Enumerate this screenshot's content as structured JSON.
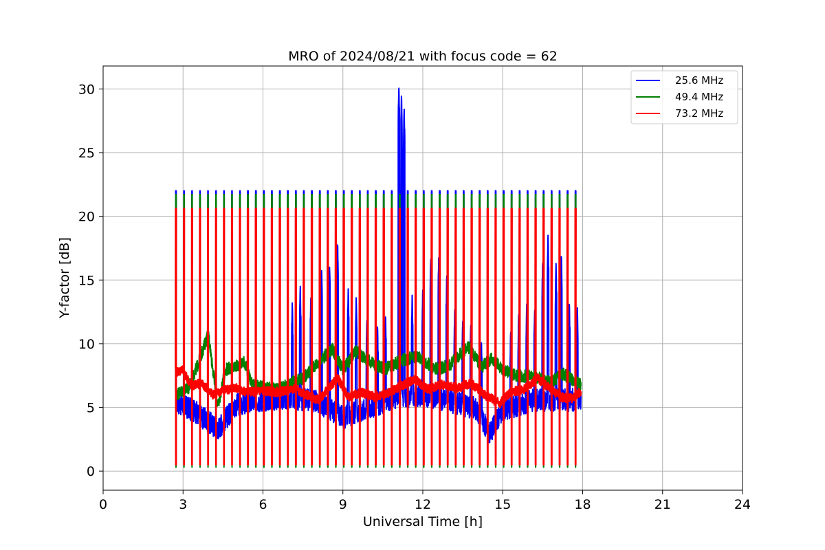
{
  "chart_data": {
    "type": "line",
    "title": "MRO of 2024/08/21 with focus code = 62",
    "xlabel": "Universal Time [h]",
    "ylabel": "Y-factor [dB]",
    "xlim": [
      0,
      24
    ],
    "ylim": [
      -1.5,
      31.8
    ],
    "xticks": [
      0,
      3,
      6,
      9,
      12,
      15,
      18,
      21,
      24
    ],
    "xtick_labels": [
      "0",
      "3",
      "6",
      "9",
      "12",
      "15",
      "18",
      "21",
      "24"
    ],
    "yticks": [
      0,
      5,
      10,
      15,
      20,
      25,
      30
    ],
    "ytick_labels": [
      "0",
      "5",
      "10",
      "15",
      "20",
      "25",
      "30"
    ],
    "grid": true,
    "legend_position": "top-right",
    "cycle": {
      "start": 2.72,
      "end": 17.8,
      "period": 0.3,
      "note_values": "each cycle: baseline level, then a calibration spike to peak and a dip to min"
    },
    "series": [
      {
        "name": "25.6 MHz",
        "color": "#0000ff",
        "peak": 22.0,
        "min": 1.5,
        "baseline": [
          [
            2.7,
            5.5
          ],
          [
            3.5,
            4.6
          ],
          [
            4.3,
            3.3
          ],
          [
            5.0,
            5.2
          ],
          [
            6.0,
            5.6
          ],
          [
            7.0,
            5.7
          ],
          [
            8.0,
            5.5
          ],
          [
            9.0,
            4.2
          ],
          [
            10.0,
            5.0
          ],
          [
            11.0,
            5.8
          ],
          [
            12.0,
            6.0
          ],
          [
            13.0,
            5.5
          ],
          [
            14.0,
            4.9
          ],
          [
            14.5,
            3.0
          ],
          [
            15.0,
            4.8
          ],
          [
            16.0,
            5.5
          ],
          [
            17.0,
            5.6
          ],
          [
            17.9,
            5.6
          ]
        ],
        "bursts": [
          [
            7.1,
            13.2
          ],
          [
            7.4,
            14.5
          ],
          [
            7.8,
            13.9
          ],
          [
            8.2,
            16.0
          ],
          [
            8.5,
            16.3
          ],
          [
            8.8,
            18.0
          ],
          [
            9.2,
            14.3
          ],
          [
            9.5,
            13.6
          ],
          [
            9.9,
            12.0
          ],
          [
            10.3,
            11.5
          ],
          [
            10.6,
            12.4
          ],
          [
            11.1,
            30.3
          ],
          [
            11.2,
            29.6
          ],
          [
            11.3,
            28.4
          ],
          [
            11.6,
            13.8
          ],
          [
            12.0,
            14.5
          ],
          [
            12.3,
            16.8
          ],
          [
            12.6,
            17.0
          ],
          [
            12.9,
            15.5
          ],
          [
            13.2,
            13.0
          ],
          [
            13.5,
            12.0
          ],
          [
            13.8,
            11.6
          ],
          [
            14.2,
            10.3
          ],
          [
            15.3,
            11.1
          ],
          [
            15.6,
            12.6
          ],
          [
            15.9,
            13.3
          ],
          [
            16.2,
            12.8
          ],
          [
            16.5,
            16.6
          ],
          [
            16.7,
            18.5
          ],
          [
            17.0,
            16.3
          ],
          [
            17.2,
            17.1
          ],
          [
            17.5,
            13.3
          ],
          [
            17.8,
            13.0
          ]
        ],
        "spike_at": 11.15,
        "spike_min": 1.5
      },
      {
        "name": "49.4 MHz",
        "color": "#008000",
        "peak": 21.7,
        "min": 0.3,
        "baseline": [
          [
            2.7,
            6.0
          ],
          [
            3.2,
            6.5
          ],
          [
            3.6,
            8.6
          ],
          [
            3.95,
            10.8
          ],
          [
            4.3,
            5.0
          ],
          [
            4.6,
            8.0
          ],
          [
            5.0,
            8.2
          ],
          [
            5.3,
            8.6
          ],
          [
            5.6,
            6.7
          ],
          [
            6.5,
            6.4
          ],
          [
            7.5,
            7.3
          ],
          [
            8.0,
            8.4
          ],
          [
            8.6,
            9.6
          ],
          [
            9.0,
            8.0
          ],
          [
            9.5,
            9.4
          ],
          [
            10.0,
            8.6
          ],
          [
            10.6,
            8.0
          ],
          [
            11.2,
            8.7
          ],
          [
            11.8,
            9.0
          ],
          [
            12.5,
            8.0
          ],
          [
            13.0,
            8.3
          ],
          [
            13.7,
            9.8
          ],
          [
            14.2,
            8.2
          ],
          [
            14.6,
            8.8
          ],
          [
            15.0,
            7.9
          ],
          [
            15.5,
            7.5
          ],
          [
            16.2,
            7.4
          ],
          [
            16.8,
            7.0
          ],
          [
            17.3,
            7.6
          ],
          [
            17.9,
            6.8
          ]
        ]
      },
      {
        "name": "73.2 MHz",
        "color": "#ff0000",
        "peak": 20.6,
        "min": 0.5,
        "baseline": [
          [
            2.7,
            7.8
          ],
          [
            3.0,
            7.9
          ],
          [
            3.3,
            6.7
          ],
          [
            3.7,
            6.9
          ],
          [
            4.1,
            6.0
          ],
          [
            4.6,
            6.4
          ],
          [
            5.0,
            6.5
          ],
          [
            5.4,
            6.2
          ],
          [
            6.0,
            6.3
          ],
          [
            6.6,
            6.2
          ],
          [
            7.2,
            6.5
          ],
          [
            7.6,
            6.0
          ],
          [
            8.1,
            5.6
          ],
          [
            8.8,
            7.3
          ],
          [
            9.2,
            5.8
          ],
          [
            9.7,
            6.2
          ],
          [
            10.2,
            5.8
          ],
          [
            10.7,
            6.1
          ],
          [
            11.2,
            6.7
          ],
          [
            11.7,
            7.2
          ],
          [
            12.2,
            6.4
          ],
          [
            12.7,
            6.8
          ],
          [
            13.3,
            6.5
          ],
          [
            13.8,
            6.9
          ],
          [
            14.4,
            5.9
          ],
          [
            14.9,
            5.3
          ],
          [
            15.3,
            6.2
          ],
          [
            15.8,
            6.4
          ],
          [
            16.3,
            7.3
          ],
          [
            16.7,
            6.6
          ],
          [
            17.2,
            5.8
          ],
          [
            17.6,
            5.7
          ],
          [
            17.9,
            6.2
          ]
        ]
      }
    ]
  }
}
